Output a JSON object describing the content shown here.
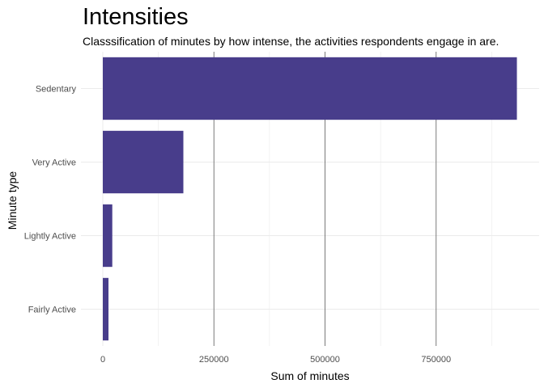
{
  "chart_data": {
    "type": "bar",
    "orientation": "horizontal",
    "title": "Intensities",
    "subtitle": "Classsification of minutes by how intense, the activities respondents engage in are.",
    "xlabel": "Sum of minutes",
    "ylabel": "Minute type",
    "categories": [
      "Sedentary",
      "Very Active",
      "Lightly Active",
      "Fairly Active"
    ],
    "values": [
      931738,
      181244,
      21313,
      12751
    ],
    "xlim": [
      0,
      950000
    ],
    "xticks": [
      0,
      250000,
      500000,
      750000
    ],
    "xtick_labels": [
      "0",
      "250000",
      "500000",
      "750000"
    ],
    "grid": true,
    "bar_color": "#483D8B"
  }
}
